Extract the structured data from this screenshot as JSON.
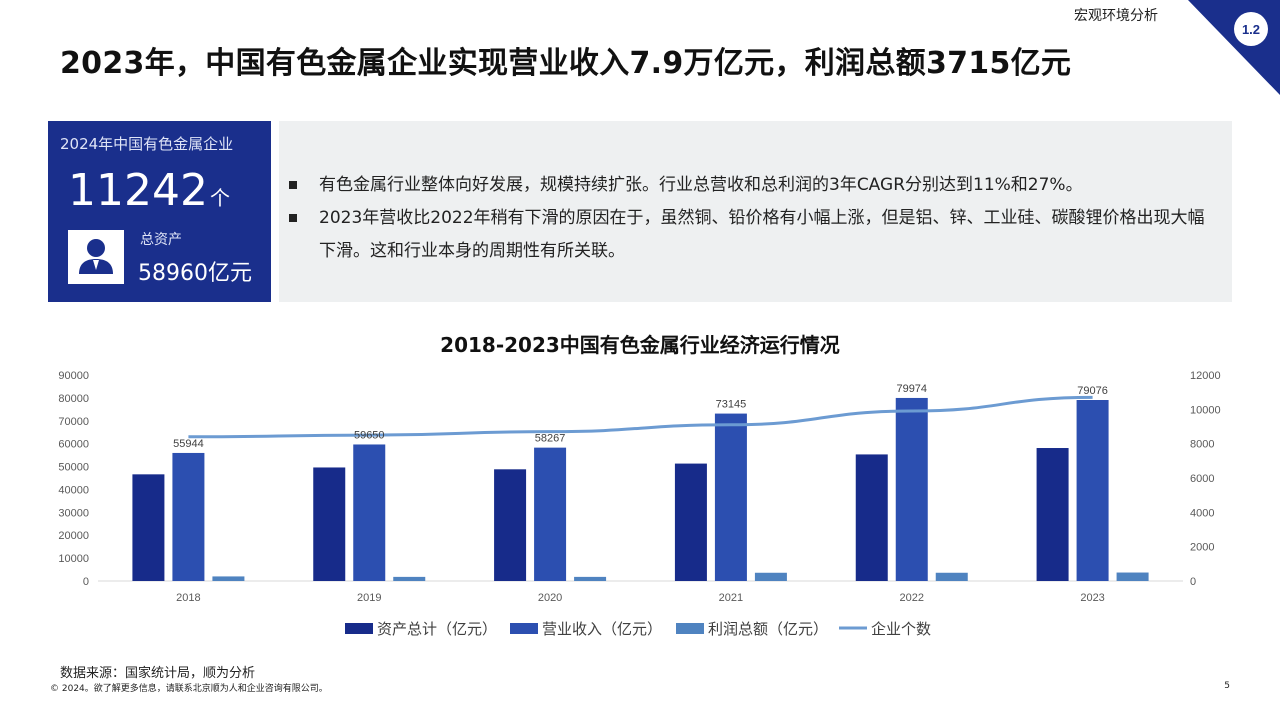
{
  "header": {
    "section": "宏观环境分析",
    "section_number": "1.2",
    "title": "2023年，中国有色金属企业实现营业收入7.9万亿元，利润总额3715亿元"
  },
  "kpi": {
    "caption": "2024年中国有色金属企业",
    "company_count": "11242",
    "company_unit": "个",
    "assets_label": "总资产",
    "assets_value": "58960亿元",
    "icon": "user-icon"
  },
  "notes": [
    "有色金属行业整体向好发展，规模持续扩张。行业总营收和总利润的3年CAGR分别达到11%和27%。",
    "2023年营收比2022年稍有下滑的原因在于，虽然铜、铅价格有小幅上涨，但是铝、锌、工业硅、碳酸锂价格出现大幅下滑。这和行业本身的周期性有所关联。"
  ],
  "chart_data": {
    "type": "bar",
    "title": "2018-2023中国有色金属行业经济运行情况",
    "categories": [
      "2018",
      "2019",
      "2020",
      "2021",
      "2022",
      "2023"
    ],
    "y_left": {
      "ylim": [
        0,
        90000
      ],
      "ticks": [
        "0",
        "10000",
        "20000",
        "30000",
        "40000",
        "50000",
        "60000",
        "70000",
        "80000",
        "90000"
      ]
    },
    "y_right": {
      "ylim": [
        0,
        12000
      ],
      "ticks": [
        "0",
        "2000",
        "4000",
        "6000",
        "8000",
        "10000",
        "12000"
      ]
    },
    "series": [
      {
        "name": "资产总计（亿元）",
        "type": "bar",
        "axis": "left",
        "color": "#172b8a",
        "values": [
          46600,
          49600,
          48800,
          51300,
          55300,
          58100
        ]
      },
      {
        "name": "营业收入（亿元）",
        "type": "bar",
        "axis": "left",
        "color": "#2c4fb0",
        "values": [
          55944,
          59650,
          58267,
          73145,
          79974,
          79076
        ],
        "labels": [
          "55944",
          "59650",
          "58267",
          "73145",
          "79974",
          "79076"
        ]
      },
      {
        "name": "利润总额（亿元）",
        "type": "bar",
        "axis": "left",
        "color": "#4f83c0",
        "values": [
          2000,
          1800,
          1800,
          3600,
          3600,
          3700
        ]
      },
      {
        "name": "企业个数",
        "type": "line",
        "axis": "right",
        "color": "#6c9bd2",
        "values": [
          8400,
          8500,
          8700,
          9100,
          9900,
          10700
        ]
      }
    ],
    "legend_position": "bottom",
    "grid": false
  },
  "footer": {
    "source": "数据来源：国家统计局，顺为分析",
    "copyright": "© 2024。欲了解更多信息，请联系北京顺为人和企业咨询有限公司。",
    "page": "5"
  }
}
